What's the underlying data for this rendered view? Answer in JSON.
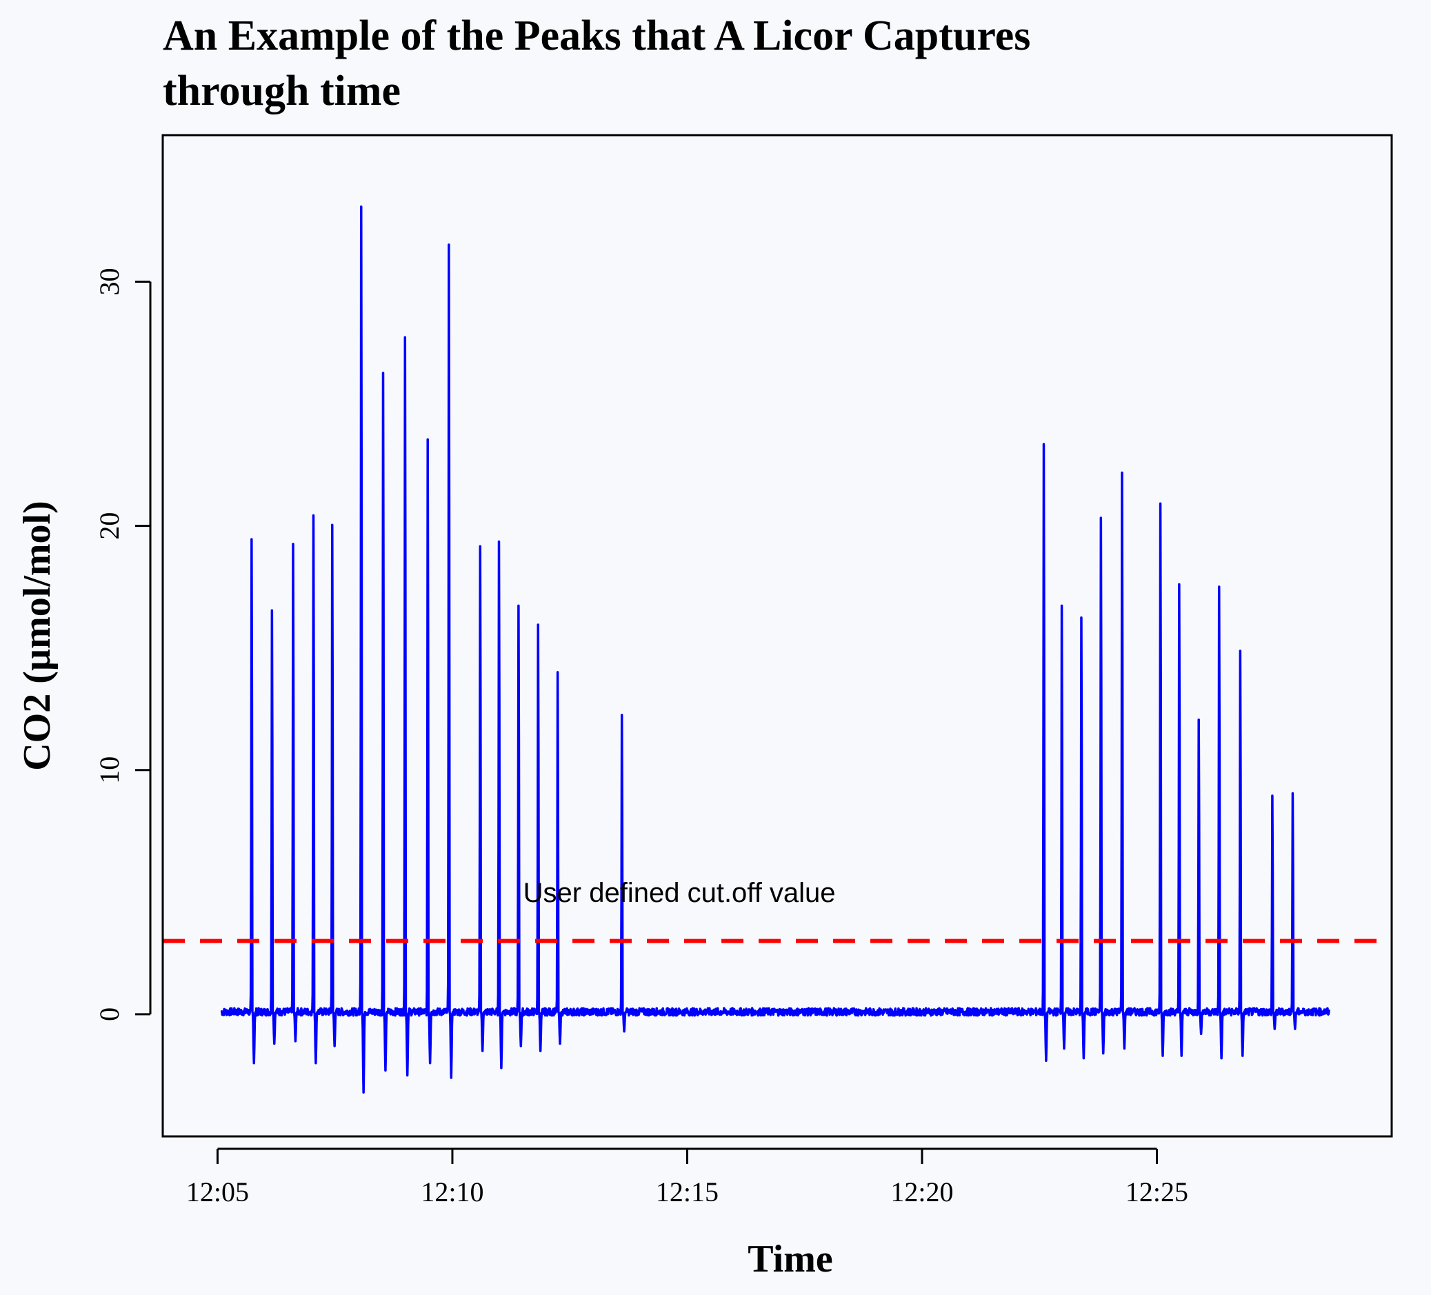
{
  "chart_data": {
    "type": "line",
    "title_lines": [
      "An Example of the Peaks that A Licor Captures",
      "through time"
    ],
    "xlabel": "Time",
    "ylabel": "CO2 (µmol/mol)",
    "xlim": [
      "12:03:50",
      "12:30:00"
    ],
    "ylim": [
      -5,
      36
    ],
    "x_ticks": [
      "12:05",
      "12:10",
      "12:15",
      "12:20",
      "12:25"
    ],
    "y_ticks": [
      0,
      10,
      20,
      30
    ],
    "grid": false,
    "series": [
      {
        "color": "#0000ff",
        "x_range": [
          "12:05:05",
          "12:28:40"
        ],
        "baseline": 0.1,
        "peaks": [
          {
            "t": "12:05:44",
            "max": 20.0,
            "min": -2.0
          },
          {
            "t": "12:06:10",
            "max": 17.0,
            "min": -1.2
          },
          {
            "t": "12:06:37",
            "max": 19.8,
            "min": -1.1
          },
          {
            "t": "12:07:03",
            "max": 21.0,
            "min": -2.0
          },
          {
            "t": "12:07:27",
            "max": 20.6,
            "min": -1.3
          },
          {
            "t": "12:08:04",
            "max": 34.0,
            "min": -3.2
          },
          {
            "t": "12:08:32",
            "max": 27.0,
            "min": -2.3
          },
          {
            "t": "12:09:00",
            "max": 28.5,
            "min": -2.5
          },
          {
            "t": "12:09:29",
            "max": 24.2,
            "min": -2.0
          },
          {
            "t": "12:09:56",
            "max": 32.4,
            "min": -2.6
          },
          {
            "t": "12:10:36",
            "max": 19.7,
            "min": -1.5
          },
          {
            "t": "12:11:00",
            "max": 19.9,
            "min": -2.2
          },
          {
            "t": "12:11:25",
            "max": 17.2,
            "min": -1.3
          },
          {
            "t": "12:11:50",
            "max": 16.4,
            "min": -1.5
          },
          {
            "t": "12:12:15",
            "max": 14.4,
            "min": -1.2
          },
          {
            "t": "12:13:37",
            "max": 12.6,
            "min": -0.7
          },
          {
            "t": "12:22:36",
            "max": 24.0,
            "min": -1.9
          },
          {
            "t": "12:22:59",
            "max": 17.2,
            "min": -1.4
          },
          {
            "t": "12:23:24",
            "max": 16.7,
            "min": -1.8
          },
          {
            "t": "12:23:49",
            "max": 20.9,
            "min": -1.6
          },
          {
            "t": "12:24:16",
            "max": 22.8,
            "min": -1.4
          },
          {
            "t": "12:25:05",
            "max": 21.5,
            "min": -1.7
          },
          {
            "t": "12:25:29",
            "max": 18.1,
            "min": -1.7
          },
          {
            "t": "12:25:54",
            "max": 12.4,
            "min": -0.8
          },
          {
            "t": "12:26:20",
            "max": 18.0,
            "min": -1.8
          },
          {
            "t": "12:26:47",
            "max": 15.3,
            "min": -1.7
          },
          {
            "t": "12:27:28",
            "max": 9.2,
            "min": -0.6
          },
          {
            "t": "12:27:54",
            "max": 9.3,
            "min": -0.6
          }
        ]
      }
    ],
    "hline": {
      "y": 3,
      "color": "#ff0000",
      "style": "dashed"
    },
    "annotation": {
      "text": "User defined cut.off value",
      "x": "12:14:50",
      "y": 5
    }
  }
}
